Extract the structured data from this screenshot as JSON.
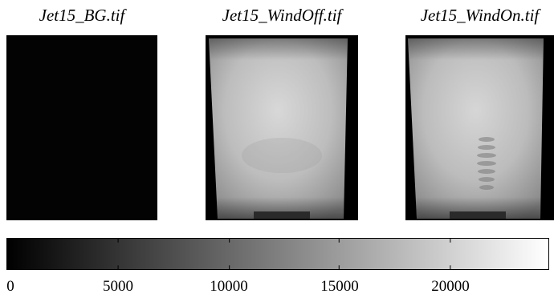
{
  "panels": [
    {
      "title": "Jet15_BG.tif"
    },
    {
      "title": "Jet15_WindOff.tif"
    },
    {
      "title": "Jet15_WindOn.tif"
    }
  ],
  "colorbar": {
    "ticks": [
      "0",
      "5000",
      "10000",
      "15000",
      "20000"
    ],
    "colors": {
      "low": "#000000",
      "high": "#ffffff"
    }
  }
}
